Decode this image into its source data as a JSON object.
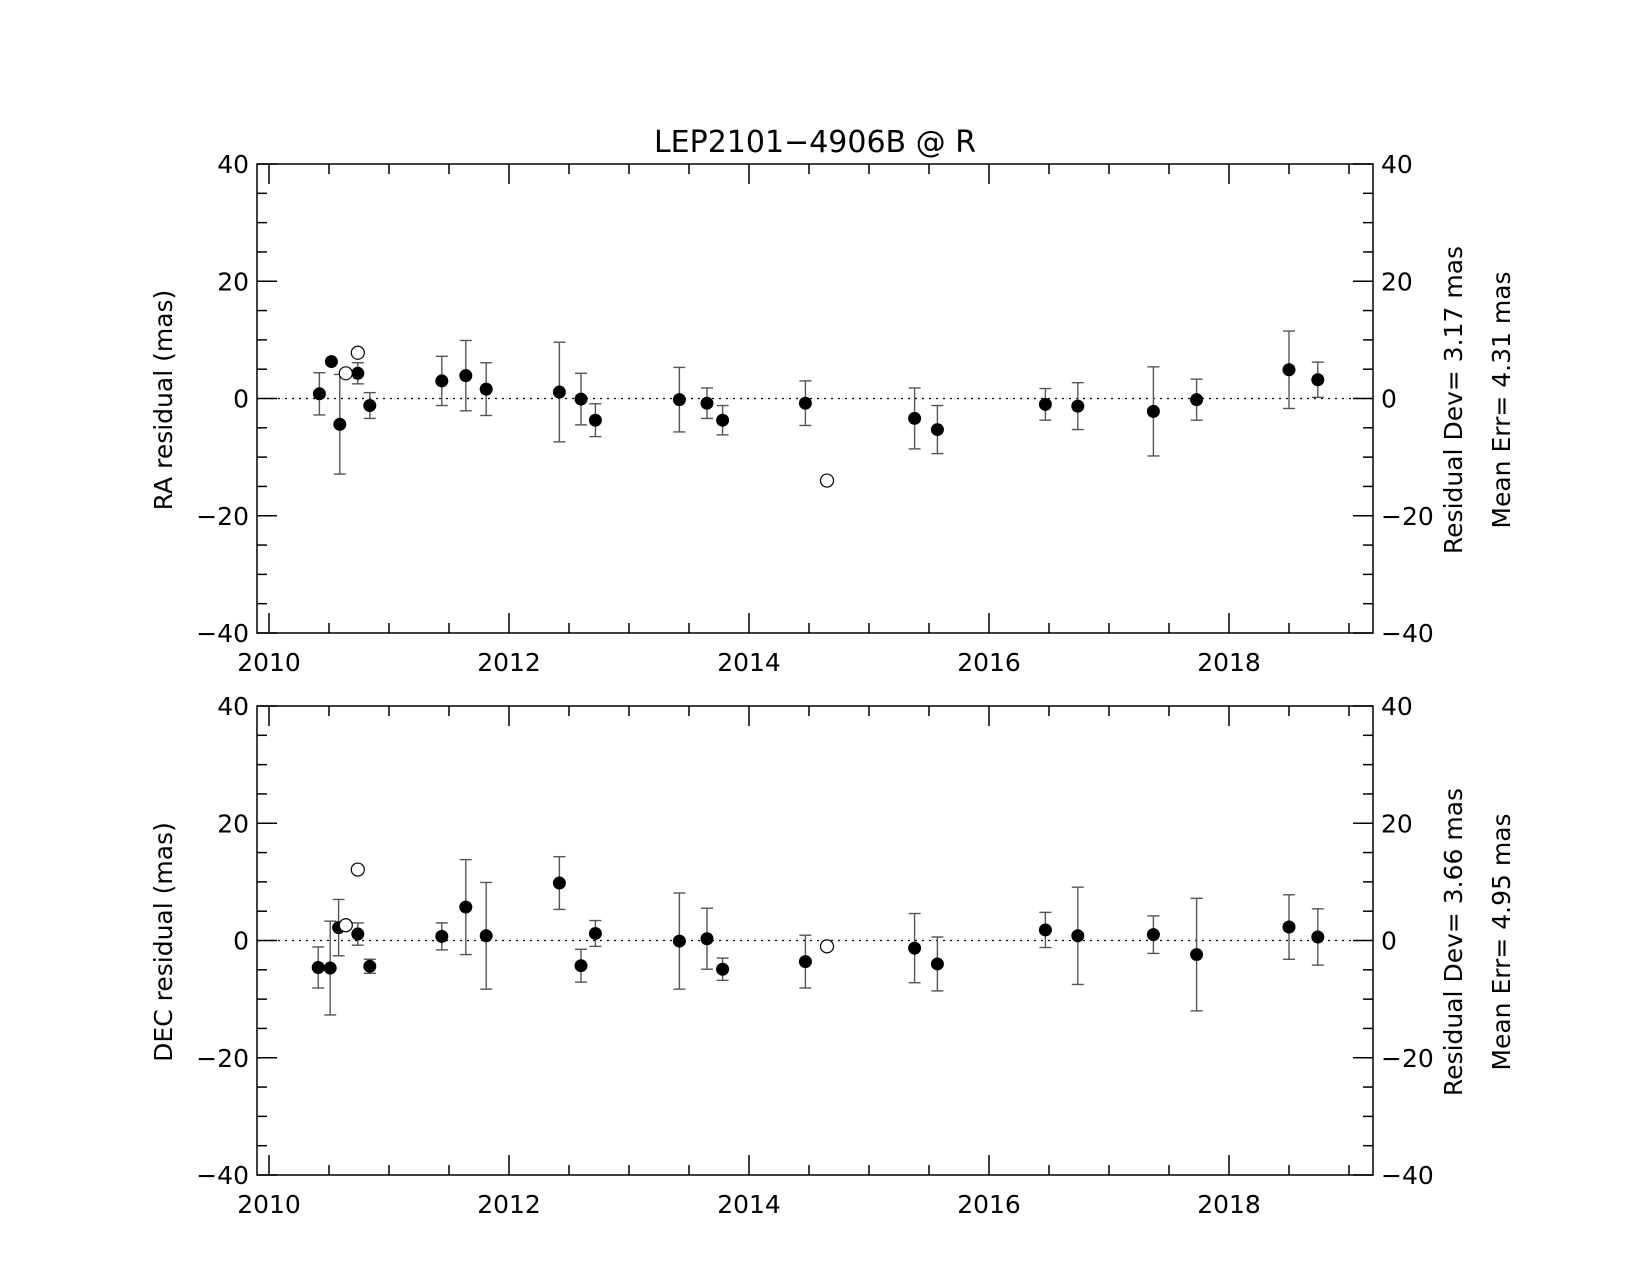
{
  "chart_data": {
    "title": "LEP2101−4906B @ R",
    "type": "scatter",
    "x_ticks": [
      "2010",
      "2012",
      "2014",
      "2016",
      "2018"
    ],
    "y_ticks": [
      "40",
      "20",
      "0",
      "−20",
      "−40"
    ],
    "xlim": [
      2009.9,
      2019.2
    ],
    "ylim": [
      -40,
      40
    ],
    "grid": false,
    "panels": [
      {
        "ylabel": "RA residual (mas)",
        "stat_dev": "Residual Dev=   3.17  mas",
        "stat_err": "Mean  Err=  4.31  mas",
        "points": [
          {
            "x": 2010.42,
            "y": 0.8,
            "err": 3.6
          },
          {
            "x": 2010.52,
            "y": 6.3,
            "err": 0
          },
          {
            "x": 2010.59,
            "y": -4.4,
            "err": 8.5
          },
          {
            "x": 2010.74,
            "y": 4.3,
            "err": 1.8
          },
          {
            "x": 2010.84,
            "y": -1.2,
            "err": 2.2
          },
          {
            "x": 2011.44,
            "y": 3.0,
            "err": 4.2
          },
          {
            "x": 2011.64,
            "y": 3.9,
            "err": 6.0
          },
          {
            "x": 2011.81,
            "y": 1.6,
            "err": 4.5
          },
          {
            "x": 2012.42,
            "y": 1.1,
            "err": 8.5
          },
          {
            "x": 2012.6,
            "y": -0.1,
            "err": 4.4
          },
          {
            "x": 2012.72,
            "y": -3.7,
            "err": 2.8
          },
          {
            "x": 2013.42,
            "y": -0.2,
            "err": 5.5
          },
          {
            "x": 2013.65,
            "y": -0.8,
            "err": 2.6
          },
          {
            "x": 2013.78,
            "y": -3.7,
            "err": 2.5
          },
          {
            "x": 2014.47,
            "y": -0.8,
            "err": 3.8
          },
          {
            "x": 2015.38,
            "y": -3.4,
            "err": 5.2
          },
          {
            "x": 2015.57,
            "y": -5.3,
            "err": 4.1
          },
          {
            "x": 2016.47,
            "y": -1.0,
            "err": 2.7
          },
          {
            "x": 2016.74,
            "y": -1.3,
            "err": 4.0
          },
          {
            "x": 2017.37,
            "y": -2.2,
            "err": 7.6
          },
          {
            "x": 2017.73,
            "y": -0.2,
            "err": 3.5
          },
          {
            "x": 2018.5,
            "y": 4.9,
            "err": 6.6
          },
          {
            "x": 2018.74,
            "y": 3.2,
            "err": 3.0
          }
        ],
        "open_points": [
          {
            "x": 2010.64,
            "y": 4.3
          },
          {
            "x": 2010.74,
            "y": 7.8
          },
          {
            "x": 2014.65,
            "y": -14.0
          }
        ]
      },
      {
        "ylabel": "DEC residual (mas)",
        "stat_dev": "Residual Dev=   3.66  mas",
        "stat_err": "Mean  Err=  4.95  mas",
        "points": [
          {
            "x": 2010.41,
            "y": -4.6,
            "err": 3.5
          },
          {
            "x": 2010.51,
            "y": -4.7,
            "err": 8.0
          },
          {
            "x": 2010.58,
            "y": 2.2,
            "err": 4.8
          },
          {
            "x": 2010.74,
            "y": 1.1,
            "err": 1.9
          },
          {
            "x": 2010.84,
            "y": -4.4,
            "err": 1.2
          },
          {
            "x": 2011.44,
            "y": 0.7,
            "err": 2.3
          },
          {
            "x": 2011.64,
            "y": 5.7,
            "err": 8.1
          },
          {
            "x": 2011.81,
            "y": 0.8,
            "err": 9.1
          },
          {
            "x": 2012.42,
            "y": 9.8,
            "err": 4.5
          },
          {
            "x": 2012.6,
            "y": -4.3,
            "err": 2.8
          },
          {
            "x": 2012.72,
            "y": 1.2,
            "err": 2.2
          },
          {
            "x": 2013.42,
            "y": -0.1,
            "err": 8.2
          },
          {
            "x": 2013.65,
            "y": 0.3,
            "err": 5.2
          },
          {
            "x": 2013.78,
            "y": -4.9,
            "err": 1.9
          },
          {
            "x": 2014.47,
            "y": -3.6,
            "err": 4.5
          },
          {
            "x": 2015.38,
            "y": -1.3,
            "err": 5.9
          },
          {
            "x": 2015.57,
            "y": -4.0,
            "err": 4.6
          },
          {
            "x": 2016.47,
            "y": 1.8,
            "err": 3.0
          },
          {
            "x": 2016.74,
            "y": 0.8,
            "err": 8.3
          },
          {
            "x": 2017.37,
            "y": 1.0,
            "err": 3.2
          },
          {
            "x": 2017.73,
            "y": -2.4,
            "err": 9.6
          },
          {
            "x": 2018.5,
            "y": 2.3,
            "err": 5.5
          },
          {
            "x": 2018.74,
            "y": 0.6,
            "err": 4.8
          }
        ],
        "open_points": [
          {
            "x": 2010.64,
            "y": 2.6
          },
          {
            "x": 2010.74,
            "y": 12.1
          },
          {
            "x": 2014.65,
            "y": -1.0
          }
        ]
      }
    ]
  }
}
